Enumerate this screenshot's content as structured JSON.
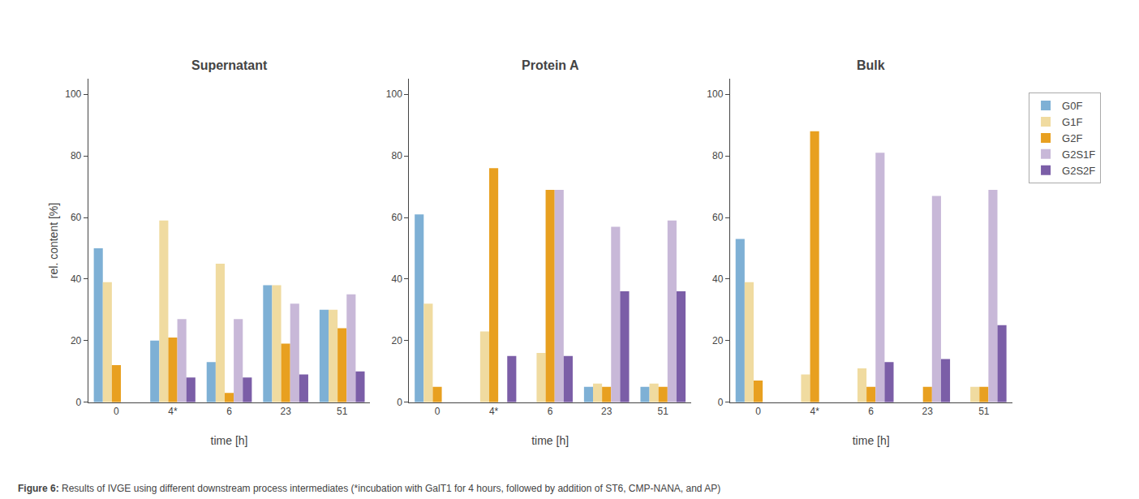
{
  "chart_data": [
    {
      "type": "bar",
      "title": "Supernatant",
      "xlabel": "time [h]",
      "ylabel": "rel. content [%]",
      "categories": [
        "0",
        "4*",
        "6",
        "23",
        "51"
      ],
      "series": [
        {
          "name": "G0F",
          "color": "#7EB0D5",
          "values": [
            50,
            20,
            13,
            38,
            30
          ]
        },
        {
          "name": "G1F",
          "color": "#F0DBA0",
          "values": [
            39,
            59,
            45,
            38,
            30
          ]
        },
        {
          "name": "G2F",
          "color": "#E8A020",
          "values": [
            12,
            21,
            3,
            19,
            24
          ]
        },
        {
          "name": "G2S1F",
          "color": "#C8B8D8",
          "values": [
            0,
            27,
            27,
            32,
            35
          ]
        },
        {
          "name": "G2S2F",
          "color": "#7B5EA7",
          "values": [
            0,
            8,
            8,
            9,
            10
          ]
        }
      ],
      "ylim": [
        0,
        105
      ],
      "yticks": [
        0,
        20,
        40,
        60,
        80,
        100
      ],
      "grid": false,
      "annotations": [
        "Figure 6: Results of IVGE using different downstream process intermediates (*incubation with GalT1 for 4 hours, followed by addition of ST6, CMP-NANA, and AP)"
      ]
    },
    {
      "type": "bar",
      "title": "Protein A",
      "xlabel": "time [h]",
      "categories": [
        "0",
        "4*",
        "6",
        "23",
        "51"
      ],
      "series": [
        {
          "name": "G0F",
          "color": "#7EB0D5",
          "values": [
            61,
            0,
            0,
            5,
            5
          ]
        },
        {
          "name": "G1F",
          "color": "#F0DBA0",
          "values": [
            32,
            23,
            16,
            6,
            6
          ]
        },
        {
          "name": "G2F",
          "color": "#E8A020",
          "values": [
            5,
            76,
            69,
            5,
            5
          ]
        },
        {
          "name": "G2S1F",
          "color": "#C8B8D8",
          "values": [
            0,
            0,
            69,
            57,
            59
          ]
        },
        {
          "name": "G2S2F",
          "color": "#7B5EA7",
          "values": [
            0,
            15,
            15,
            36,
            36
          ]
        }
      ],
      "ylim": [
        0,
        105
      ],
      "yticks": [
        0,
        20,
        40,
        60,
        80,
        100
      ],
      "grid": false
    },
    {
      "type": "bar",
      "title": "Bulk",
      "xlabel": "time [h]",
      "categories": [
        "0",
        "4*",
        "6",
        "23",
        "51"
      ],
      "series": [
        {
          "name": "G0F",
          "color": "#7EB0D5",
          "values": [
            53,
            0,
            0,
            0,
            0
          ]
        },
        {
          "name": "G1F",
          "color": "#F0DBA0",
          "values": [
            39,
            9,
            11,
            0,
            5
          ]
        },
        {
          "name": "G2F",
          "color": "#E8A020",
          "values": [
            7,
            88,
            5,
            5,
            5
          ]
        },
        {
          "name": "G2S1F",
          "color": "#C8B8D8",
          "values": [
            0,
            0,
            81,
            67,
            69
          ]
        },
        {
          "name": "G2S2F",
          "color": "#7B5EA7",
          "values": [
            0,
            0,
            13,
            14,
            25
          ]
        }
      ],
      "ylim": [
        0,
        105
      ],
      "yticks": [
        0,
        20,
        40,
        60,
        80,
        100
      ],
      "grid": false,
      "legend": "right"
    }
  ]
}
